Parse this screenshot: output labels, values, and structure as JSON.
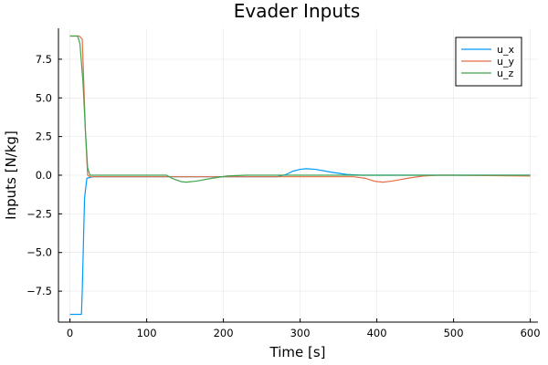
{
  "chart_data": {
    "type": "line",
    "title": "Evader Inputs",
    "xlabel": "Time [s]",
    "ylabel": "Inputs [N/kg]",
    "xlim": [
      -15,
      610
    ],
    "ylim": [
      -9.5,
      9.5
    ],
    "xticks": [
      0,
      100,
      200,
      300,
      400,
      500,
      600
    ],
    "xtick_labels": [
      "0",
      "100",
      "200",
      "300",
      "400",
      "500",
      "600"
    ],
    "yticks": [
      -7.5,
      -5.0,
      -2.5,
      0.0,
      2.5,
      5.0,
      7.5
    ],
    "ytick_labels": [
      "−7.5",
      "−5.0",
      "−2.5",
      "0.0",
      "2.5",
      "5.0",
      "7.5"
    ],
    "grid": true,
    "legend_position": "top-right",
    "series": [
      {
        "name": "u_x",
        "color": "#009AFA",
        "points": [
          [
            0,
            -9.0
          ],
          [
            15,
            -9.0
          ],
          [
            16,
            -7.5
          ],
          [
            19,
            -1.5
          ],
          [
            22,
            -0.2
          ],
          [
            30,
            -0.1
          ],
          [
            100,
            -0.1
          ],
          [
            200,
            -0.1
          ],
          [
            270,
            -0.1
          ],
          [
            282,
            0.05
          ],
          [
            290,
            0.25
          ],
          [
            300,
            0.38
          ],
          [
            308,
            0.42
          ],
          [
            320,
            0.38
          ],
          [
            340,
            0.2
          ],
          [
            360,
            0.05
          ],
          [
            380,
            0.0
          ],
          [
            440,
            0.0
          ],
          [
            500,
            0.0
          ],
          [
            600,
            0.0
          ]
        ]
      },
      {
        "name": "u_y",
        "color": "#E36F47",
        "points": [
          [
            0,
            9.0
          ],
          [
            12,
            9.0
          ],
          [
            16,
            8.8
          ],
          [
            18,
            6.0
          ],
          [
            20,
            3.0
          ],
          [
            23,
            0.0
          ],
          [
            26,
            -0.1
          ],
          [
            100,
            -0.1
          ],
          [
            200,
            -0.1
          ],
          [
            300,
            -0.1
          ],
          [
            370,
            -0.1
          ],
          [
            385,
            -0.2
          ],
          [
            398,
            -0.4
          ],
          [
            408,
            -0.45
          ],
          [
            420,
            -0.38
          ],
          [
            440,
            -0.2
          ],
          [
            460,
            -0.05
          ],
          [
            480,
            0.0
          ],
          [
            500,
            0.0
          ],
          [
            600,
            -0.05
          ]
        ]
      },
      {
        "name": "u_z",
        "color": "#3EA44E",
        "points": [
          [
            0,
            9.0
          ],
          [
            10,
            9.0
          ],
          [
            13,
            8.5
          ],
          [
            17,
            6.0
          ],
          [
            20,
            3.0
          ],
          [
            23,
            0.5
          ],
          [
            26,
            0.0
          ],
          [
            126,
            0.0
          ],
          [
            133,
            -0.2
          ],
          [
            145,
            -0.42
          ],
          [
            152,
            -0.45
          ],
          [
            165,
            -0.38
          ],
          [
            185,
            -0.2
          ],
          [
            205,
            -0.05
          ],
          [
            230,
            0.0
          ],
          [
            280,
            0.0
          ],
          [
            300,
            0.0
          ],
          [
            400,
            0.0
          ],
          [
            500,
            0.0
          ],
          [
            600,
            0.0
          ]
        ]
      }
    ]
  }
}
